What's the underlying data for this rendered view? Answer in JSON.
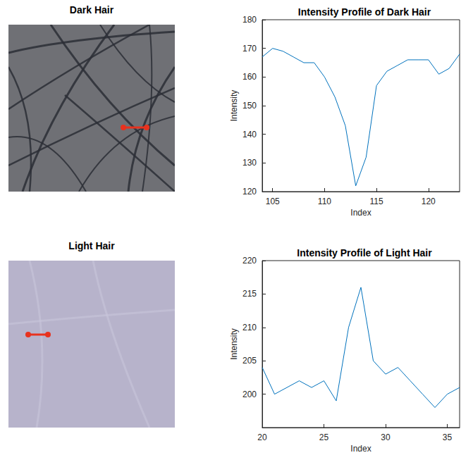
{
  "images": [
    {
      "title": "Dark Hair"
    },
    {
      "title": "Light Hair"
    }
  ],
  "chart_data": [
    {
      "type": "line",
      "title": "Intensity Profile of Dark Hair",
      "x_label": "Index",
      "y_label": "Intensity",
      "x": [
        104,
        105,
        106,
        107,
        108,
        109,
        110,
        111,
        112,
        113,
        114,
        115,
        116,
        117,
        118,
        119,
        120,
        121,
        122,
        123
      ],
      "values": [
        167,
        170,
        169,
        167,
        165,
        165,
        160,
        153,
        143,
        122,
        132,
        157,
        162,
        164,
        166,
        166,
        166,
        161,
        163,
        168
      ],
      "color": "#0072bd",
      "xlim": [
        104,
        123
      ],
      "xticks": [
        105,
        110,
        115,
        120
      ],
      "ylim": [
        120,
        180
      ],
      "yticks": [
        120,
        130,
        140,
        150,
        160,
        170,
        180
      ],
      "grid": false
    },
    {
      "type": "line",
      "title": "Intensity Profile of Light Hair",
      "x_label": "Index",
      "y_label": "Intensity",
      "x": [
        20,
        21,
        22,
        23,
        24,
        25,
        26,
        27,
        28,
        29,
        30,
        31,
        32,
        33,
        34,
        35,
        36
      ],
      "values": [
        204,
        200,
        201,
        202,
        201,
        202,
        199,
        210,
        216,
        205,
        203,
        204,
        202,
        200,
        198,
        200,
        201
      ],
      "color": "#0072bd",
      "xlim": [
        20,
        36
      ],
      "xticks": [
        20,
        25,
        30,
        35
      ],
      "ylim": [
        195,
        220
      ],
      "yticks": [
        200,
        205,
        210,
        215,
        220
      ],
      "grid": false
    }
  ]
}
